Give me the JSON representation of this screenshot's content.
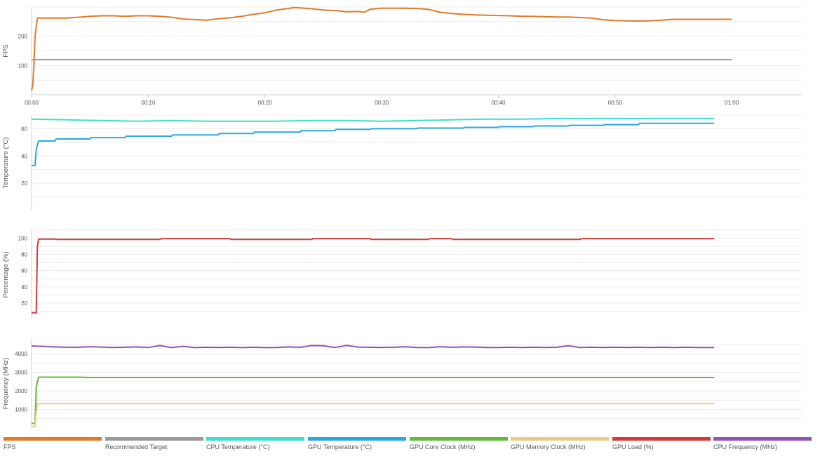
{
  "chart_data": [
    {
      "type": "line",
      "ylabel": "FPS",
      "ylim": [
        0,
        300
      ],
      "yticks": [
        100,
        200
      ],
      "xlim": [
        0,
        66
      ],
      "x_tick_labels": [
        "00:00",
        "00:10",
        "00:20",
        "00:30",
        "00:40",
        "00:50",
        "01:00"
      ],
      "series": [
        {
          "name": "FPS",
          "color": "#e07b2a",
          "x": [
            0,
            0.1,
            0.2,
            0.3,
            0.5,
            2,
            3,
            4,
            5,
            6,
            7,
            8,
            9,
            10,
            11,
            12,
            13,
            14,
            15,
            16,
            17,
            18,
            19,
            20,
            21,
            22,
            22.5,
            23,
            24,
            25,
            26,
            27,
            28,
            28.5,
            29,
            30,
            31,
            32,
            33,
            34,
            35,
            36,
            37,
            38,
            39,
            40,
            41,
            42,
            43,
            44,
            45,
            46,
            47,
            48,
            49,
            50,
            51,
            52,
            53,
            54,
            55,
            56,
            57,
            58,
            59,
            60
          ],
          "y": [
            15,
            30,
            100,
            200,
            262,
            262,
            262,
            265,
            268,
            270,
            270,
            268,
            270,
            270,
            268,
            265,
            259,
            257,
            255,
            260,
            263,
            268,
            275,
            280,
            290,
            295,
            298,
            297,
            294,
            290,
            288,
            284,
            285,
            282,
            292,
            296,
            296,
            296,
            295,
            292,
            282,
            278,
            275,
            273,
            272,
            271,
            270,
            268,
            268,
            267,
            266,
            266,
            264,
            262,
            256,
            254,
            253,
            252,
            253,
            255,
            258,
            258,
            258,
            258,
            258,
            258
          ]
        },
        {
          "name": "Recommended Target",
          "color": "#9a9a9a",
          "x": [
            0,
            60
          ],
          "y": [
            120,
            120
          ]
        }
      ]
    },
    {
      "type": "line",
      "ylabel": "Temperature (°C)",
      "ylim": [
        0,
        70
      ],
      "yticks": [
        20,
        40,
        60
      ],
      "xlim": [
        0,
        66
      ],
      "series": [
        {
          "name": "CPU Temperature (°C)",
          "color": "#3ddfca",
          "x": [
            0,
            3,
            6,
            9,
            12,
            15,
            18,
            21,
            24,
            27,
            30,
            33,
            36,
            39,
            42,
            45,
            48,
            51,
            54,
            57,
            58.5
          ],
          "y": [
            67,
            66.5,
            66,
            65.5,
            66,
            65.5,
            65.5,
            65.5,
            66,
            66,
            65.5,
            66,
            66.5,
            67,
            67,
            67.5,
            67.5,
            67.5,
            67.5,
            67.5,
            67.5
          ]
        },
        {
          "name": "GPU Temperature (°C)",
          "color": "#2aa8e0",
          "x": [
            0,
            0.3,
            0.4,
            0.6,
            2,
            2.1,
            5,
            5.1,
            8,
            8.1,
            12,
            12.1,
            16,
            16.1,
            19,
            19.1,
            23,
            23.1,
            26,
            26.1,
            29,
            29.1,
            33,
            33.1,
            37,
            37.1,
            40,
            40.1,
            43,
            43.1,
            46,
            46.1,
            49,
            49.1,
            52,
            52.1,
            58.5
          ],
          "y": [
            33,
            33,
            45,
            51,
            51,
            52.5,
            52.5,
            53.5,
            53.5,
            54.5,
            54.5,
            55.5,
            55.5,
            56.5,
            56.5,
            57.5,
            57.5,
            58.5,
            58.5,
            59.5,
            59.5,
            60,
            60,
            60.5,
            60.5,
            61,
            61,
            61.5,
            61.5,
            62,
            62,
            62.5,
            62.5,
            63,
            63,
            64,
            64
          ]
        }
      ]
    },
    {
      "type": "line",
      "ylabel": "Percentage (%)",
      "ylim": [
        0,
        110
      ],
      "yticks": [
        20,
        40,
        60,
        80,
        100
      ],
      "xlim": [
        0,
        66
      ],
      "series": [
        {
          "name": "GPU Load (%)",
          "color": "#d43a3a",
          "x": [
            0,
            0.4,
            0.5,
            0.6,
            0.8,
            2,
            2.1,
            11,
            11.1,
            17,
            17.1,
            24,
            24.1,
            29,
            29.1,
            34,
            34.1,
            36,
            36.1,
            47,
            47.1,
            58.5
          ],
          "y": [
            8,
            8,
            90,
            99,
            99,
            99,
            98.5,
            98.5,
            99.5,
            99.5,
            98.5,
            98.5,
            99.5,
            99.5,
            98.5,
            98.5,
            99.5,
            99.5,
            98.5,
            98.5,
            99.5,
            99.5
          ]
        }
      ]
    },
    {
      "type": "line",
      "ylabel": "Frequency (MHz)",
      "ylim": [
        0,
        4800
      ],
      "yticks": [
        1000,
        2000,
        3000,
        4000
      ],
      "xlim": [
        0,
        66
      ],
      "series": [
        {
          "name": "CPU Frequency (MHz)",
          "color": "#8e55b8",
          "x": [
            0,
            1,
            2,
            3,
            4,
            5,
            6,
            7,
            8,
            9,
            10,
            11,
            12,
            13,
            14,
            15,
            16,
            17,
            18,
            19,
            20,
            21,
            22,
            23,
            24,
            25,
            26,
            27,
            28,
            29,
            30,
            31,
            32,
            33,
            34,
            35,
            36,
            37,
            38,
            39,
            40,
            41,
            42,
            43,
            44,
            45,
            46,
            47,
            48,
            49,
            50,
            51,
            52,
            53,
            54,
            55,
            56,
            57,
            58.5
          ],
          "y": [
            4420,
            4400,
            4370,
            4350,
            4350,
            4380,
            4360,
            4340,
            4350,
            4370,
            4340,
            4440,
            4330,
            4400,
            4330,
            4350,
            4340,
            4350,
            4330,
            4350,
            4330,
            4340,
            4370,
            4350,
            4440,
            4430,
            4340,
            4450,
            4360,
            4350,
            4340,
            4350,
            4380,
            4340,
            4330,
            4380,
            4350,
            4370,
            4360,
            4340,
            4340,
            4350,
            4340,
            4350,
            4340,
            4350,
            4430,
            4340,
            4350,
            4340,
            4350,
            4340,
            4350,
            4340,
            4350,
            4340,
            4350,
            4340,
            4340
          ]
        },
        {
          "name": "GPU Core Clock (MHz)",
          "color": "#62bb3a",
          "x": [
            0,
            0.3,
            0.4,
            0.6,
            4,
            5,
            58.5
          ],
          "y": [
            250,
            250,
            2200,
            2740,
            2740,
            2720,
            2720
          ]
        },
        {
          "name": "GPU Memory Clock (MHz)",
          "color": "#e9cc8a",
          "x": [
            0,
            0.3,
            0.4,
            0.5,
            58.5
          ],
          "y": [
            80,
            80,
            900,
            1310,
            1310
          ]
        }
      ]
    }
  ],
  "legend": [
    {
      "label": "FPS",
      "color": "#e07b2a"
    },
    {
      "label": "Recommended Target",
      "color": "#9a9a9a"
    },
    {
      "label": "CPU Temperature (°C)",
      "color": "#3ddfca"
    },
    {
      "label": "GPU Temperature (°C)",
      "color": "#2aa8e0"
    },
    {
      "label": "GPU Core Clock (MHz)",
      "color": "#62bb3a"
    },
    {
      "label": "GPU Memory Clock (MHz)",
      "color": "#e9cc8a"
    },
    {
      "label": "GPU Load (%)",
      "color": "#d43a3a"
    },
    {
      "label": "CPU Frequency (MHz)",
      "color": "#8e55b8"
    }
  ]
}
